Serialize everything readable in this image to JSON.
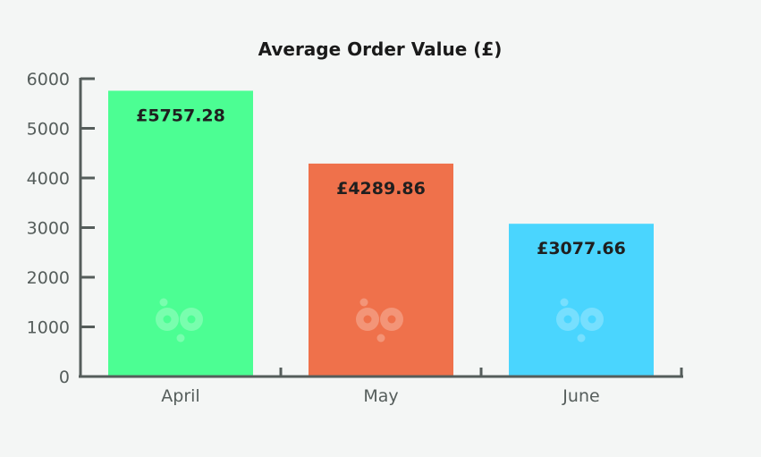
{
  "chart_data": {
    "type": "bar",
    "title": "Average Order Value (£)",
    "categories": [
      "April",
      "May",
      "June"
    ],
    "values": [
      5757.28,
      4289.86,
      3077.66
    ],
    "data_labels": [
      "£5757.28",
      "£4289.86",
      "£3077.66"
    ],
    "yticks": [
      "0",
      "1000",
      "2000",
      "3000",
      "4000",
      "5000",
      "6000"
    ],
    "ylim": [
      0,
      6000
    ],
    "grid": false,
    "colors": [
      "#4cfe93",
      "#ef714b",
      "#4ad5fe"
    ]
  }
}
